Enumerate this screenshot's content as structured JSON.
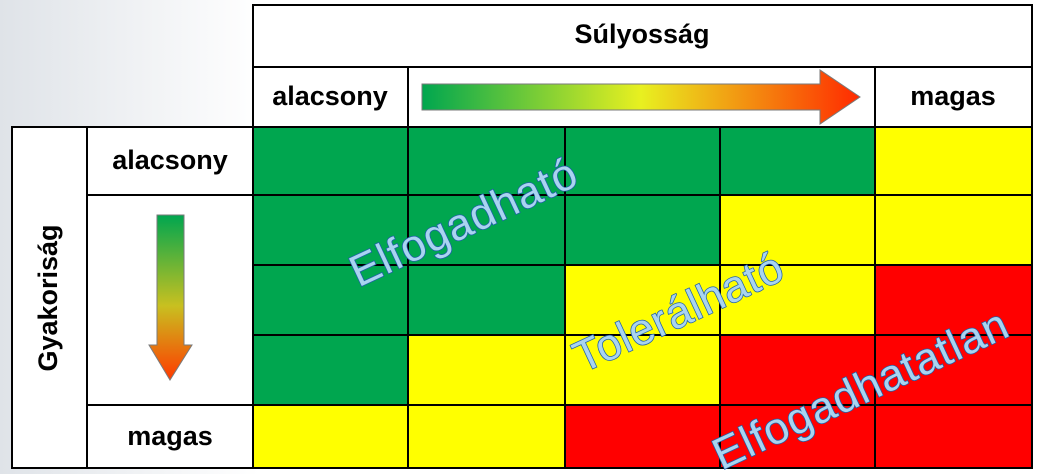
{
  "header": {
    "title": "Súlyosság",
    "low": "alacsony",
    "high": "magas"
  },
  "side": {
    "title": "Gyakoriság",
    "low": "alacsony",
    "high": "magas"
  },
  "zones": [
    "Elfogadható",
    "Tolerálható",
    "Elfogadhatatlan"
  ],
  "cell_colors": [
    [
      "#00a64f",
      "#00a64f",
      "#00a64f",
      "#00a64f",
      "#ffff00"
    ],
    [
      "#00a64f",
      "#00a64f",
      "#00a64f",
      "#ffff00",
      "#ffff00"
    ],
    [
      "#00a64f",
      "#00a64f",
      "#ffff00",
      "#ffff00",
      "#ff0000"
    ],
    [
      "#00a64f",
      "#ffff00",
      "#ffff00",
      "#ff0000",
      "#ff0000"
    ],
    [
      "#ffff00",
      "#ffff00",
      "#ff0000",
      "#ff0000",
      "#ff0000"
    ]
  ]
}
